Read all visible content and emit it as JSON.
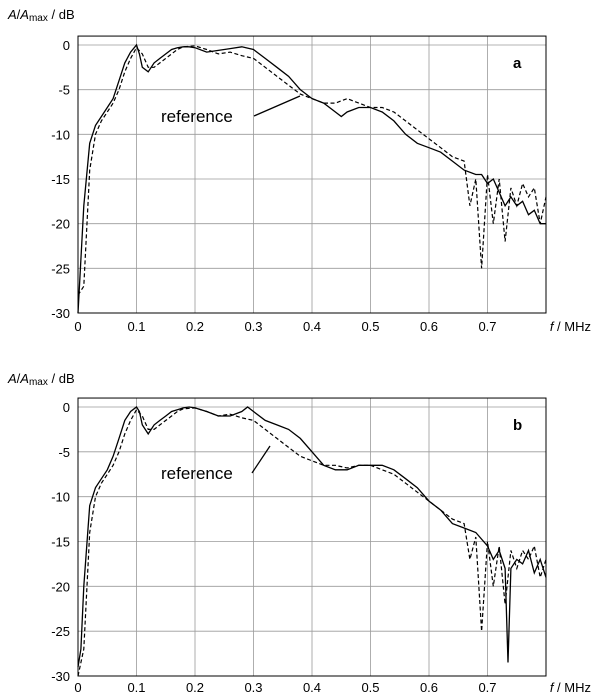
{
  "ylabel": {
    "a": "A",
    "sep": "/",
    "b": "A",
    "sub": "max",
    "unit": " / dB"
  },
  "xlabel": {
    "f": "f",
    "unit": " / MHz"
  },
  "chart_data": [
    {
      "type": "line",
      "panel_label": "a",
      "annotation": "reference",
      "xlim": [
        0,
        0.8
      ],
      "ylim": [
        -30,
        1
      ],
      "xticks": [
        "0",
        "0.1",
        "0.2",
        "0.3",
        "0.4",
        "0.5",
        "0.6",
        "0.7"
      ],
      "yticks": [
        "0",
        "-5",
        "-10",
        "-15",
        "-20",
        "-25",
        "-30"
      ],
      "grid": true,
      "series": [
        {
          "style": "solid",
          "x": [
            0,
            0.005,
            0.01,
            0.02,
            0.03,
            0.04,
            0.05,
            0.06,
            0.07,
            0.08,
            0.09,
            0.1,
            0.105,
            0.11,
            0.12,
            0.13,
            0.14,
            0.15,
            0.16,
            0.17,
            0.18,
            0.19,
            0.2,
            0.22,
            0.24,
            0.26,
            0.28,
            0.3,
            0.32,
            0.34,
            0.36,
            0.38,
            0.4,
            0.42,
            0.44,
            0.45,
            0.46,
            0.48,
            0.5,
            0.52,
            0.54,
            0.56,
            0.58,
            0.6,
            0.62,
            0.64,
            0.66,
            0.68,
            0.69,
            0.7,
            0.71,
            0.72,
            0.73,
            0.74,
            0.75,
            0.76,
            0.77,
            0.78,
            0.79,
            0.8
          ],
          "y": [
            -30,
            -24,
            -18,
            -11,
            -9,
            -8,
            -7,
            -6,
            -4,
            -2,
            -0.8,
            0,
            -1,
            -2.5,
            -3,
            -2,
            -1.5,
            -1,
            -0.5,
            -0.3,
            -0.2,
            -0.2,
            -0.3,
            -0.8,
            -0.6,
            -0.4,
            -0.2,
            -0.5,
            -1.5,
            -2.5,
            -3.5,
            -5,
            -6,
            -6.5,
            -7.5,
            -8,
            -7.5,
            -7,
            -7,
            -7.5,
            -8.5,
            -10,
            -11,
            -11.5,
            -12,
            -13,
            -14,
            -14.5,
            -14.5,
            -15.5,
            -15,
            -16.5,
            -18,
            -17,
            -18,
            -17.5,
            -19,
            -18.5,
            -20,
            -20
          ]
        },
        {
          "style": "dashed",
          "x": [
            0,
            0.01,
            0.02,
            0.03,
            0.04,
            0.05,
            0.06,
            0.07,
            0.08,
            0.09,
            0.1,
            0.11,
            0.12,
            0.13,
            0.14,
            0.15,
            0.16,
            0.17,
            0.18,
            0.2,
            0.22,
            0.24,
            0.26,
            0.28,
            0.3,
            0.32,
            0.34,
            0.36,
            0.38,
            0.4,
            0.42,
            0.44,
            0.46,
            0.48,
            0.5,
            0.52,
            0.54,
            0.56,
            0.58,
            0.6,
            0.62,
            0.64,
            0.66,
            0.67,
            0.68,
            0.69,
            0.7,
            0.71,
            0.72,
            0.73,
            0.74,
            0.75,
            0.76,
            0.77,
            0.78,
            0.79,
            0.8
          ],
          "y": [
            -28,
            -27,
            -14,
            -10,
            -8.5,
            -7.5,
            -6.5,
            -5,
            -3,
            -1.5,
            -0.3,
            -1,
            -2.5,
            -2.5,
            -2,
            -1.5,
            -1,
            -0.5,
            -0.2,
            -0.1,
            -0.5,
            -1,
            -0.8,
            -1.2,
            -1.5,
            -2.5,
            -3.5,
            -4.5,
            -5.5,
            -6,
            -6.5,
            -6.5,
            -6,
            -6.5,
            -7,
            -7,
            -7.5,
            -8.5,
            -9.5,
            -10.5,
            -11.5,
            -12.5,
            -13,
            -18,
            -15,
            -25,
            -14.5,
            -20,
            -15,
            -22,
            -16,
            -18,
            -15.5,
            -17,
            -16,
            -20,
            -17
          ]
        }
      ]
    },
    {
      "type": "line",
      "panel_label": "b",
      "annotation": "reference",
      "xlim": [
        0,
        0.8
      ],
      "ylim": [
        -30,
        1
      ],
      "xticks": [
        "0",
        "0.1",
        "0.2",
        "0.3",
        "0.4",
        "0.5",
        "0.6",
        "0.7"
      ],
      "yticks": [
        "0",
        "-5",
        "-10",
        "-15",
        "-20",
        "-25",
        "-30"
      ],
      "grid": true,
      "series": [
        {
          "style": "solid",
          "x": [
            0,
            0.005,
            0.01,
            0.02,
            0.03,
            0.04,
            0.05,
            0.06,
            0.07,
            0.08,
            0.09,
            0.1,
            0.105,
            0.11,
            0.12,
            0.13,
            0.14,
            0.15,
            0.16,
            0.17,
            0.18,
            0.19,
            0.2,
            0.22,
            0.24,
            0.26,
            0.28,
            0.29,
            0.3,
            0.32,
            0.34,
            0.36,
            0.38,
            0.4,
            0.42,
            0.44,
            0.46,
            0.48,
            0.5,
            0.52,
            0.54,
            0.56,
            0.58,
            0.6,
            0.62,
            0.64,
            0.66,
            0.68,
            0.7,
            0.71,
            0.72,
            0.73,
            0.735,
            0.74,
            0.75,
            0.76,
            0.77,
            0.78,
            0.79,
            0.8
          ],
          "y": [
            -29,
            -27,
            -20,
            -11,
            -9,
            -8,
            -7,
            -5.5,
            -3.5,
            -1.5,
            -0.5,
            0,
            -0.5,
            -2,
            -3,
            -2,
            -1.5,
            -1,
            -0.5,
            -0.3,
            -0.1,
            0,
            -0.1,
            -0.5,
            -1,
            -1,
            -0.5,
            0,
            -0.5,
            -1.5,
            -2,
            -2.5,
            -3.5,
            -5,
            -6.5,
            -7,
            -7,
            -6.5,
            -6.5,
            -6.5,
            -7,
            -8,
            -9,
            -10.5,
            -11.5,
            -13,
            -13.5,
            -14,
            -15.5,
            -17,
            -16,
            -18,
            -28.5,
            -18,
            -17,
            -17.5,
            -16,
            -18.5,
            -17,
            -19
          ]
        },
        {
          "style": "dashed",
          "x": [
            0,
            0.01,
            0.02,
            0.03,
            0.04,
            0.05,
            0.06,
            0.07,
            0.08,
            0.09,
            0.1,
            0.11,
            0.12,
            0.13,
            0.14,
            0.15,
            0.16,
            0.17,
            0.18,
            0.2,
            0.22,
            0.24,
            0.26,
            0.28,
            0.3,
            0.32,
            0.34,
            0.36,
            0.38,
            0.4,
            0.42,
            0.44,
            0.46,
            0.48,
            0.5,
            0.52,
            0.54,
            0.56,
            0.58,
            0.6,
            0.62,
            0.64,
            0.66,
            0.67,
            0.68,
            0.69,
            0.7,
            0.71,
            0.72,
            0.73,
            0.74,
            0.75,
            0.76,
            0.77,
            0.78,
            0.79,
            0.8
          ],
          "y": [
            -30,
            -27,
            -14,
            -10,
            -8.5,
            -7.5,
            -6.5,
            -5,
            -3,
            -1.5,
            -0.3,
            -1,
            -2.5,
            -2.5,
            -2,
            -1.5,
            -1,
            -0.5,
            -0.2,
            -0.1,
            -0.5,
            -1,
            -0.8,
            -1.2,
            -1.5,
            -2.5,
            -3.5,
            -4.5,
            -5.5,
            -6,
            -6.5,
            -6.5,
            -6.8,
            -6.5,
            -6.5,
            -7,
            -7.5,
            -8.5,
            -9.5,
            -10.5,
            -11.5,
            -12.5,
            -13,
            -17,
            -14.5,
            -25,
            -15,
            -20,
            -15.5,
            -22,
            -16,
            -18,
            -16,
            -17,
            -15.5,
            -19,
            -17
          ]
        }
      ]
    }
  ]
}
